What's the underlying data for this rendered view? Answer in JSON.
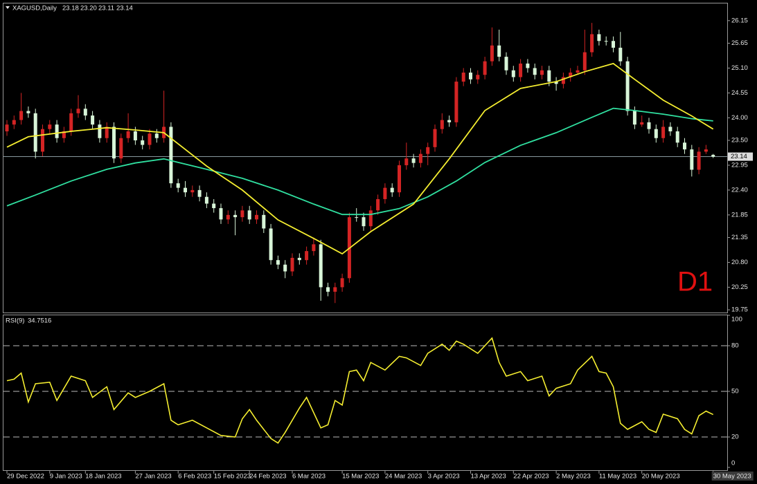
{
  "chart_data": {
    "type": "candlestick",
    "title": "XAGUSD,Daily",
    "ohlc_labels": [
      "23.18",
      "23.20",
      "23.11",
      "23.14"
    ],
    "annotation": "D1",
    "annotation_color": "#e01010",
    "up_color": "#d42424",
    "down_color": "#d8f5d8",
    "categories": [
      "29 Dec 2022",
      null,
      null,
      null,
      null,
      null,
      "9 Jan 2023",
      null,
      null,
      null,
      null,
      "18 Jan 2023",
      null,
      null,
      null,
      null,
      null,
      null,
      "27 Jan 2023",
      null,
      null,
      null,
      null,
      null,
      "6 Feb 2023",
      null,
      null,
      null,
      null,
      "15 Feb 2023",
      null,
      null,
      null,
      null,
      "24 Feb 2023",
      null,
      null,
      null,
      null,
      null,
      "6 Mar 2023",
      null,
      null,
      null,
      null,
      null,
      null,
      "15 Mar 2023",
      null,
      null,
      null,
      null,
      null,
      "24 Mar 2023",
      null,
      null,
      null,
      null,
      null,
      "3 Apr 2023",
      null,
      null,
      null,
      null,
      null,
      "13 Apr 2023",
      null,
      null,
      null,
      null,
      null,
      "22 Apr 2023",
      null,
      null,
      null,
      null,
      null,
      "2 May 2023",
      null,
      null,
      null,
      null,
      null,
      "11 May 2023",
      null,
      null,
      null,
      null,
      null,
      "20 May 2023",
      null,
      null,
      null,
      null,
      null,
      null,
      null,
      null,
      null,
      "30 May 2023"
    ],
    "open": [
      23.7,
      23.85,
      23.95,
      24.15,
      24.1,
      23.25,
      23.75,
      23.85,
      23.55,
      23.7,
      24.1,
      24.2,
      24.05,
      23.85,
      23.55,
      23.8,
      23.1,
      23.55,
      23.7,
      23.5,
      23.4,
      23.65,
      23.55,
      23.8,
      22.55,
      22.45,
      22.35,
      22.4,
      22.25,
      22.1,
      22.0,
      21.75,
      21.85,
      21.8,
      21.95,
      21.75,
      21.85,
      21.55,
      20.85,
      20.75,
      20.6,
      20.9,
      20.85,
      21.05,
      21.2,
      20.25,
      20.15,
      20.25,
      20.45,
      21.8,
      21.8,
      21.6,
      21.95,
      22.2,
      22.45,
      22.35,
      22.95,
      23.1,
      23.0,
      23.2,
      23.35,
      23.75,
      23.95,
      23.9,
      24.8,
      25.0,
      24.85,
      24.95,
      25.25,
      25.6,
      25.35,
      25.05,
      24.9,
      25.2,
      25.1,
      24.95,
      25.05,
      24.8,
      24.75,
      24.9,
      25.0,
      25.05,
      25.45,
      25.85,
      25.7,
      25.7,
      25.55,
      25.25,
      24.15,
      23.85,
      23.9,
      23.75,
      23.55,
      23.8,
      23.7,
      23.45,
      23.3,
      22.85,
      23.25,
      23.18
    ],
    "high": [
      23.95,
      24.05,
      24.55,
      24.25,
      24.2,
      23.85,
      23.95,
      23.95,
      23.8,
      24.2,
      24.5,
      24.3,
      24.15,
      23.95,
      23.9,
      23.9,
      23.65,
      24.1,
      23.8,
      23.6,
      23.75,
      23.75,
      24.6,
      23.9,
      22.65,
      22.6,
      22.5,
      22.5,
      22.35,
      22.2,
      22.1,
      21.95,
      21.95,
      22.05,
      22.05,
      21.95,
      21.95,
      21.65,
      20.95,
      20.85,
      21.0,
      21.0,
      21.15,
      21.35,
      21.3,
      20.35,
      20.35,
      20.55,
      21.9,
      22.0,
      21.9,
      22.05,
      22.3,
      22.55,
      22.55,
      23.05,
      23.45,
      23.2,
      23.3,
      23.45,
      23.85,
      24.1,
      24.05,
      24.9,
      25.1,
      25.1,
      25.05,
      25.35,
      26.0,
      25.95,
      25.45,
      25.15,
      25.3,
      25.3,
      25.2,
      25.15,
      25.15,
      24.9,
      25.0,
      25.1,
      25.15,
      25.95,
      26.1,
      25.95,
      25.8,
      25.8,
      25.9,
      25.35,
      24.25,
      24.05,
      24.0,
      23.85,
      23.95,
      23.9,
      23.8,
      23.55,
      23.4,
      23.35,
      23.4,
      23.2
    ],
    "low": [
      23.6,
      23.75,
      23.85,
      24.0,
      23.1,
      23.15,
      23.65,
      23.45,
      23.45,
      23.6,
      24.0,
      23.95,
      23.75,
      23.45,
      23.45,
      23.0,
      23.0,
      23.45,
      23.4,
      23.3,
      23.3,
      23.45,
      23.45,
      22.45,
      22.35,
      22.25,
      22.25,
      22.15,
      22.0,
      21.9,
      21.65,
      21.65,
      21.4,
      21.7,
      21.65,
      21.65,
      21.45,
      20.75,
      20.65,
      20.45,
      20.5,
      20.75,
      20.75,
      20.95,
      19.95,
      20.05,
      19.9,
      20.15,
      20.35,
      21.7,
      21.5,
      21.5,
      21.85,
      22.1,
      22.25,
      22.25,
      22.85,
      22.9,
      22.9,
      22.95,
      23.25,
      23.65,
      23.8,
      23.8,
      24.7,
      24.75,
      24.75,
      24.85,
      25.15,
      25.25,
      24.95,
      24.8,
      24.8,
      25.0,
      24.85,
      24.85,
      24.7,
      24.6,
      24.65,
      24.8,
      24.95,
      24.95,
      25.35,
      25.6,
      25.6,
      25.45,
      25.15,
      24.05,
      23.75,
      23.8,
      23.65,
      23.45,
      23.45,
      23.6,
      23.35,
      23.2,
      22.7,
      22.75,
      23.2,
      23.11
    ],
    "close": [
      23.85,
      23.95,
      24.15,
      24.1,
      23.25,
      23.75,
      23.85,
      23.55,
      23.7,
      24.1,
      24.2,
      24.05,
      23.85,
      23.55,
      23.8,
      23.1,
      23.55,
      23.7,
      23.5,
      23.4,
      23.65,
      23.55,
      23.8,
      22.55,
      22.45,
      22.35,
      22.4,
      22.25,
      22.1,
      22.0,
      21.75,
      21.85,
      21.8,
      21.95,
      21.75,
      21.85,
      21.55,
      20.85,
      20.75,
      20.6,
      20.9,
      20.85,
      21.05,
      21.2,
      20.25,
      20.15,
      20.25,
      20.45,
      21.8,
      21.8,
      21.6,
      21.95,
      22.2,
      22.45,
      22.35,
      22.95,
      23.1,
      23.0,
      23.2,
      23.35,
      23.75,
      23.95,
      23.9,
      24.8,
      25.0,
      24.85,
      24.95,
      25.25,
      25.6,
      25.35,
      25.05,
      24.9,
      25.2,
      25.1,
      24.95,
      25.05,
      24.8,
      24.75,
      24.9,
      25.0,
      25.05,
      25.45,
      25.85,
      25.7,
      25.7,
      25.55,
      25.25,
      24.15,
      23.85,
      23.9,
      23.75,
      23.55,
      23.8,
      23.7,
      23.45,
      23.3,
      22.85,
      23.25,
      23.3,
      23.14
    ],
    "ma_fast": {
      "color": "#f5ee30",
      "x": [
        0,
        3,
        9,
        14,
        18,
        22,
        28,
        33,
        38,
        43,
        47,
        51,
        57,
        62,
        67,
        72,
        77,
        81,
        85,
        88,
        92,
        96,
        99
      ],
      "values": [
        23.35,
        23.58,
        23.7,
        23.78,
        23.73,
        23.67,
        22.93,
        22.4,
        21.74,
        21.33,
        20.99,
        21.48,
        22.09,
        23.09,
        24.16,
        24.65,
        24.8,
        25.02,
        25.2,
        24.85,
        24.39,
        24.04,
        23.75
      ]
    },
    "ma_slow": {
      "color": "#30e0a0",
      "x": [
        0,
        4,
        9,
        14,
        18,
        22,
        28,
        33,
        38,
        43,
        47,
        51,
        55,
        59,
        63,
        67,
        72,
        77,
        82,
        85,
        88,
        92,
        96,
        99
      ],
      "values": [
        22.05,
        22.29,
        22.6,
        22.86,
        23.0,
        23.09,
        22.86,
        22.66,
        22.4,
        22.09,
        21.86,
        21.86,
        21.99,
        22.25,
        22.6,
        23.01,
        23.39,
        23.67,
        24.01,
        24.21,
        24.16,
        24.08,
        23.98,
        23.93
      ]
    },
    "ylim": [
      19.69,
      26.53
    ],
    "yticks": [
      {
        "value": 19.75,
        "label": "19.75"
      },
      {
        "value": 20.25,
        "label": "20.25"
      },
      {
        "value": 20.8,
        "label": "20.80"
      },
      {
        "value": 21.35,
        "label": "21.35"
      },
      {
        "value": 21.85,
        "label": "21.85"
      },
      {
        "value": 22.4,
        "label": "22.40"
      },
      {
        "value": 22.95,
        "label": "22.95"
      },
      {
        "value": 23.5,
        "label": "23.50"
      },
      {
        "value": 24.0,
        "label": "24.00"
      },
      {
        "value": 24.55,
        "label": "24.55"
      },
      {
        "value": 25.1,
        "label": "25.10"
      },
      {
        "value": 25.65,
        "label": "25.65"
      },
      {
        "value": 26.15,
        "label": "26.15"
      }
    ],
    "indicator": {
      "label": "RSI(9)",
      "color": "#f5ee30",
      "x": [
        0,
        1,
        2,
        3,
        4,
        6,
        7,
        9,
        11,
        12,
        14,
        15,
        17,
        18,
        20,
        22,
        23,
        24,
        26,
        28,
        30,
        32,
        33,
        34,
        35,
        37,
        38,
        39,
        41,
        42,
        44,
        45,
        46,
        47,
        48,
        49,
        50,
        51,
        53,
        55,
        56,
        58,
        59,
        61,
        62,
        63,
        64,
        66,
        67,
        68,
        69,
        70,
        72,
        73,
        75,
        76,
        77,
        79,
        80,
        82,
        83,
        84,
        85,
        86,
        87,
        89,
        90,
        91,
        92,
        94,
        95,
        96,
        97,
        98,
        99
      ],
      "values": [
        57,
        58,
        62,
        43,
        55,
        56,
        44,
        60,
        57,
        46,
        53,
        38,
        49,
        46,
        50,
        55,
        31,
        28,
        31,
        26,
        21,
        20,
        32,
        38,
        31,
        19,
        16,
        23,
        39,
        46,
        26,
        28,
        44,
        41,
        63,
        64,
        57,
        69,
        64,
        73,
        72,
        67,
        75,
        81,
        77,
        83,
        81,
        75,
        80,
        85,
        69,
        60,
        63,
        57,
        60,
        47,
        52,
        55,
        64,
        73,
        63,
        62,
        53,
        29,
        25,
        30,
        25,
        23,
        35,
        32,
        25,
        22,
        34,
        37,
        34.7516
      ],
      "ylim": [
        0,
        100
      ],
      "yticks": [
        0,
        20,
        50,
        80,
        100
      ]
    }
  }
}
